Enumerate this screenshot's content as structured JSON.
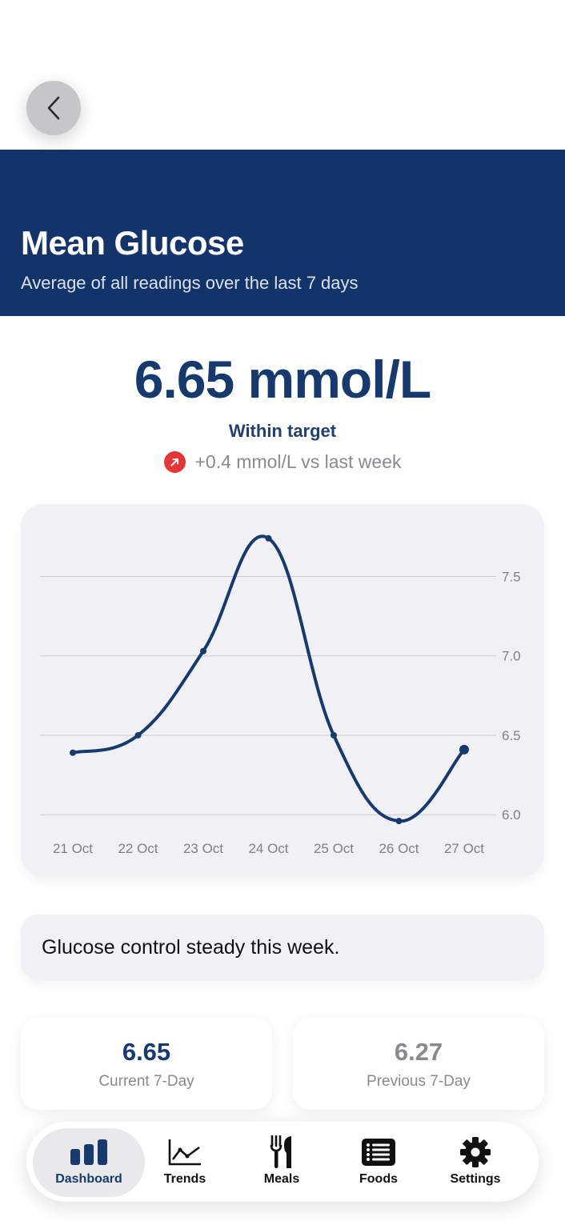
{
  "header": {
    "title": "Mean Glucose",
    "subtitle": "Average of all readings over the last 7 days"
  },
  "summary": {
    "value": "6.65 mmol/L",
    "status": "Within target",
    "delta_text": "+0.4 mmol/L vs last week",
    "delta_icon": "arrow-up-right-icon"
  },
  "chart_data": {
    "type": "line",
    "title": "",
    "xlabel": "",
    "ylabel": "",
    "x": [
      "21 Oct",
      "22 Oct",
      "23 Oct",
      "24 Oct",
      "25 Oct",
      "26 Oct",
      "27 Oct"
    ],
    "series": [
      {
        "values": [
          6.39,
          6.5,
          7.03,
          7.74,
          6.5,
          5.96,
          6.41
        ]
      }
    ],
    "yticks": [
      "6.0",
      "6.5",
      "7.0",
      "7.5"
    ],
    "ylim": [
      5.85,
      7.88
    ],
    "grid": true,
    "y_axis_position": "right",
    "line_color": "#173a6e"
  },
  "insight": {
    "text": "Glucose control steady this week."
  },
  "stats": [
    {
      "value": "6.65",
      "label": "Current 7-Day",
      "color": "#173a6e"
    },
    {
      "value": "6.27",
      "label": "Previous 7-Day",
      "color": "#8a8a8e"
    }
  ],
  "tabs": [
    {
      "label": "Dashboard",
      "icon": "bar-chart-icon",
      "active": true
    },
    {
      "label": "Trends",
      "icon": "line-chart-icon",
      "active": false
    },
    {
      "label": "Meals",
      "icon": "fork-knife-icon",
      "active": false
    },
    {
      "label": "Foods",
      "icon": "list-icon",
      "active": false
    },
    {
      "label": "Settings",
      "icon": "gear-icon",
      "active": false
    }
  ],
  "colors": {
    "header_bg": "#12346a",
    "accent": "#173a6e",
    "delta_badge": "#e53535",
    "card_bg": "#f1f1f5"
  }
}
